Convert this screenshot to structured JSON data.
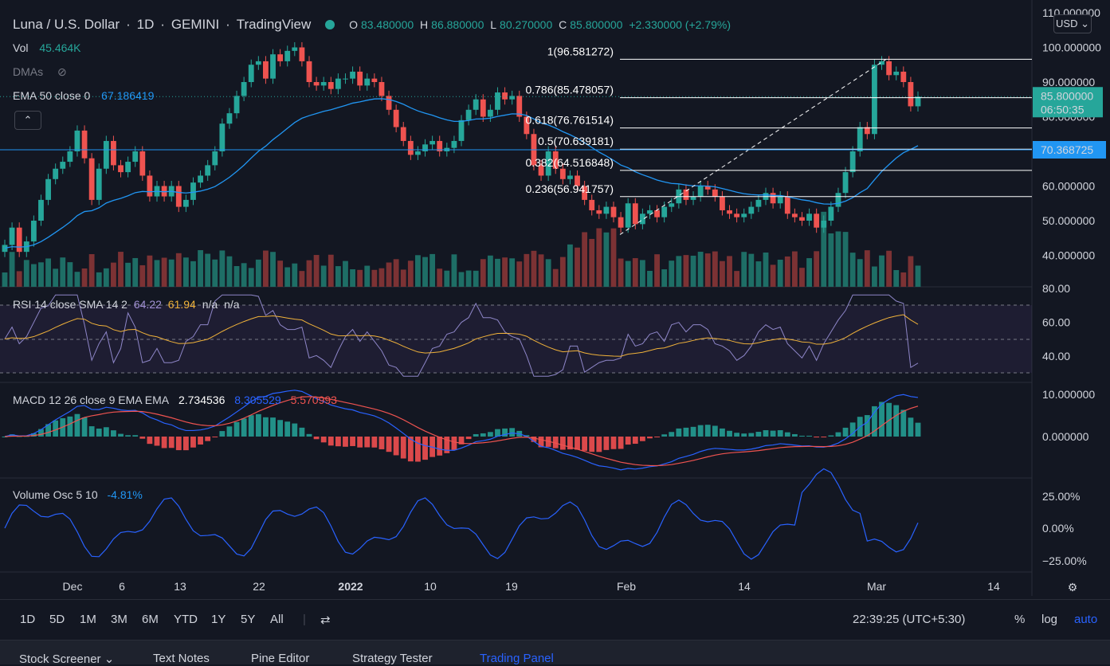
{
  "header": {
    "symbol": "Luna / U.S. Dollar",
    "interval": "1D",
    "exchange": "GEMINI",
    "provider": "TradingView",
    "o_label": "O",
    "o": "83.480000",
    "h_label": "H",
    "h": "86.880000",
    "l_label": "L",
    "l": "80.270000",
    "c_label": "C",
    "c": "85.800000",
    "change": "+2.330000 (+2.79%)",
    "currency": "USD"
  },
  "legends": {
    "vol_label": "Vol",
    "vol_value": "45.464K",
    "dmas_label": "DMAs",
    "ema_label": "EMA 50 close 0",
    "ema_value": "67.186419",
    "rsi_label": "RSI 14 close SMA 14 2",
    "rsi_v1": "64.22",
    "rsi_v2": "61.94",
    "rsi_v3": "n/a",
    "rsi_v4": "n/a",
    "macd_label": "MACD 12 26 close 9 EMA EMA",
    "macd_v1": "2.734536",
    "macd_v2": "8.305529",
    "macd_v3": "5.570993",
    "vosc_label": "Volume Osc 5 10",
    "vosc_value": "-4.81%"
  },
  "price_axis": {
    "ticks": [
      "110.000000",
      "100.000000",
      "90.000000",
      "80.000000",
      "70.000000",
      "60.000000",
      "50.000000",
      "40.000000"
    ],
    "last_price": "85.800000",
    "countdown": "06:50:35",
    "line_price": "70.368725"
  },
  "rsi_axis": [
    "80.00",
    "60.00",
    "40.00"
  ],
  "macd_axis": [
    "10.000000",
    "0.000000"
  ],
  "vosc_axis": [
    "25.00%",
    "0.00%",
    "−25.00%"
  ],
  "time_axis": [
    "Dec",
    "6",
    "13",
    "22",
    "2022",
    "10",
    "19",
    "Feb",
    "14",
    "Mar",
    "14"
  ],
  "fib_levels": [
    {
      "label": "1(96.581272)",
      "price": 96.581272
    },
    {
      "label": "0.786(85.478057)",
      "price": 85.478057
    },
    {
      "label": "0.618(76.761514)",
      "price": 76.761514
    },
    {
      "label": "0.5(70.639181)",
      "price": 70.639181
    },
    {
      "label": "0.382(64.516848)",
      "price": 64.516848
    },
    {
      "label": "0.236(56.941757)",
      "price": 56.941757
    }
  ],
  "toolbar": {
    "timeframes": [
      "1D",
      "5D",
      "1M",
      "3M",
      "6M",
      "YTD",
      "1Y",
      "5Y",
      "All"
    ],
    "clock": "22:39:25 (UTC+5:30)",
    "percent": "%",
    "log": "log",
    "auto": "auto"
  },
  "tabs": [
    "Stock Screener",
    "Text Notes",
    "Pine Editor",
    "Strategy Tester",
    "Trading Panel"
  ],
  "colors": {
    "up": "#26a69a",
    "down": "#ef5350",
    "ema": "#2196f3",
    "rsi": "#7e57c2",
    "rsi_sma": "#f0b23a",
    "fib": "#ffffff"
  },
  "chart_data": {
    "type": "candlestick",
    "closes": [
      43,
      48,
      41,
      44,
      50,
      56,
      62,
      65,
      67,
      70,
      76,
      68,
      56,
      65,
      73,
      66,
      64,
      67,
      70,
      63,
      57,
      60,
      57,
      60,
      54,
      56,
      61,
      63,
      66,
      70,
      78,
      81,
      86,
      90,
      95,
      96,
      91,
      98,
      96,
      99,
      100,
      96,
      90,
      89,
      90,
      88,
      91,
      91,
      93,
      89,
      91,
      90,
      86,
      82,
      77,
      73,
      69,
      70,
      72,
      73,
      70,
      71,
      73,
      79,
      82,
      85,
      80,
      82,
      87,
      85,
      86,
      80,
      75,
      66,
      63,
      70,
      65,
      62,
      63,
      60,
      56,
      53,
      52,
      54,
      51,
      48,
      55,
      49,
      52,
      53,
      51,
      54,
      55,
      59,
      56,
      57,
      60,
      59,
      57,
      53,
      52,
      51,
      52,
      54,
      56,
      58,
      55,
      57,
      52,
      51,
      50,
      52,
      48,
      50,
      54,
      58,
      64,
      70,
      77,
      75,
      95,
      96,
      92,
      93,
      90,
      83,
      85.8
    ],
    "ema50_start": 42,
    "ema50_end": 67.186419,
    "last_close": 85.8
  }
}
